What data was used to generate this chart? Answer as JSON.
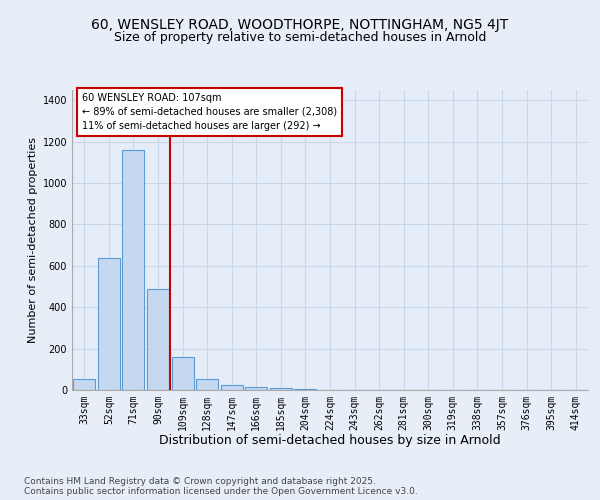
{
  "title1": "60, WENSLEY ROAD, WOODTHORPE, NOTTINGHAM, NG5 4JT",
  "title2": "Size of property relative to semi-detached houses in Arnold",
  "xlabel": "Distribution of semi-detached houses by size in Arnold",
  "ylabel": "Number of semi-detached properties",
  "categories": [
    "33sqm",
    "52sqm",
    "71sqm",
    "90sqm",
    "109sqm",
    "128sqm",
    "147sqm",
    "166sqm",
    "185sqm",
    "204sqm",
    "224sqm",
    "243sqm",
    "262sqm",
    "281sqm",
    "300sqm",
    "319sqm",
    "338sqm",
    "357sqm",
    "376sqm",
    "395sqm",
    "414sqm"
  ],
  "values": [
    55,
    640,
    1160,
    490,
    160,
    55,
    25,
    15,
    8,
    5,
    0,
    0,
    0,
    0,
    0,
    0,
    0,
    0,
    0,
    0,
    0
  ],
  "bar_color": "#c5d8f0",
  "bar_edge_color": "#5b9bd5",
  "vline_index": 3.5,
  "vline_color": "#cc0000",
  "annotation_title": "60 WENSLEY ROAD: 107sqm",
  "annotation_line1": "← 89% of semi-detached houses are smaller (2,308)",
  "annotation_line2": "11% of semi-detached houses are larger (292) →",
  "ylim_max": 1450,
  "yticks": [
    0,
    200,
    400,
    600,
    800,
    1000,
    1200,
    1400
  ],
  "footer1": "Contains HM Land Registry data © Crown copyright and database right 2025.",
  "footer2": "Contains public sector information licensed under the Open Government Licence v3.0.",
  "fig_bg": "#e8eef8",
  "plot_bg": "#e4edf8",
  "title1_fs": 10,
  "title2_fs": 9,
  "xlabel_fs": 9,
  "ylabel_fs": 8,
  "tick_fs": 7,
  "annot_fs": 7,
  "footer_fs": 6.5,
  "grid_color": "#c8d8e8"
}
